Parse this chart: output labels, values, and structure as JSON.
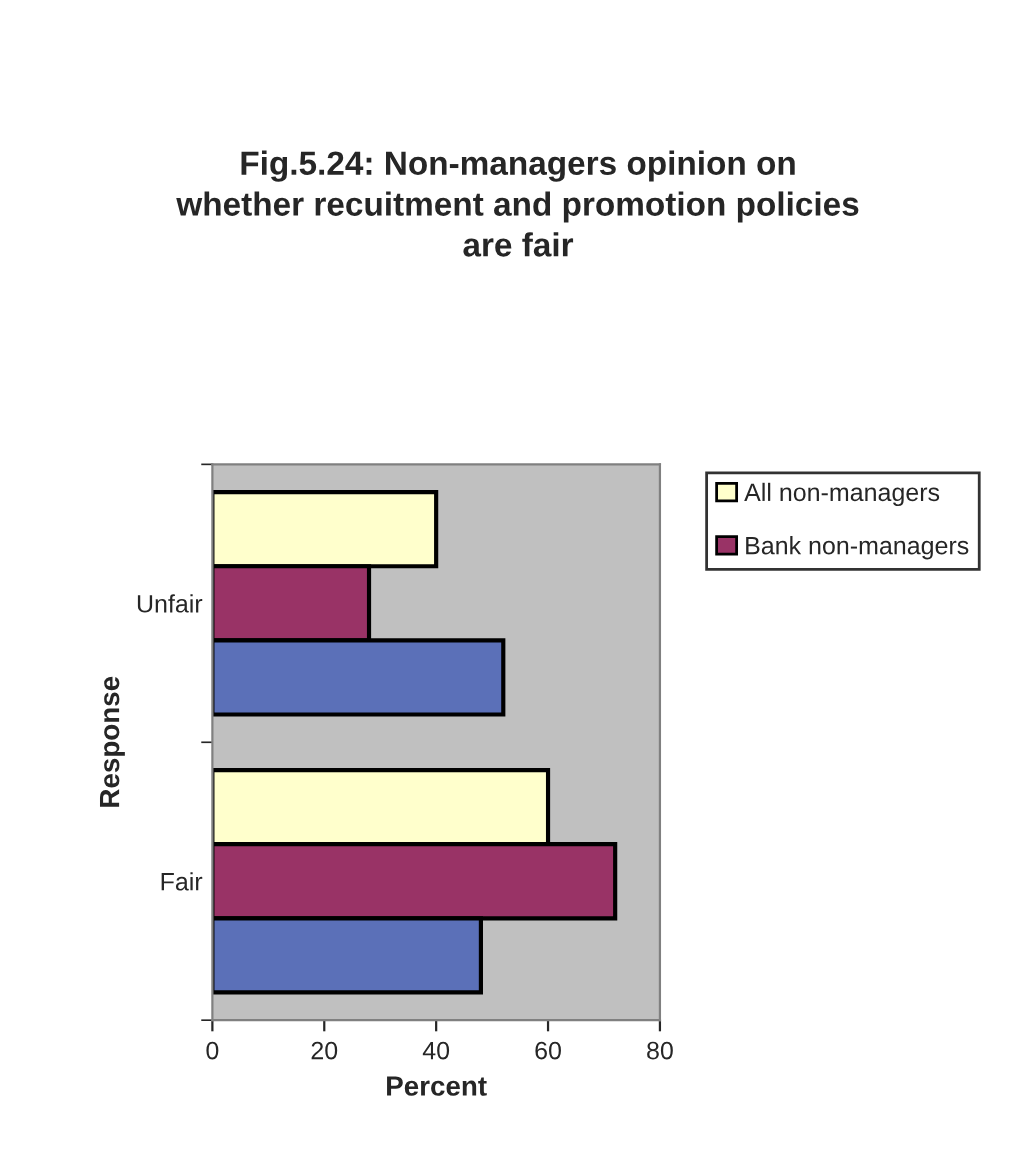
{
  "chart_data": {
    "type": "bar",
    "orientation": "horizontal",
    "title": "Fig.5.24: Non-managers opinion on\nwhether recuitment and promotion policies\nare fair",
    "xlabel": "Percent",
    "ylabel": "Response",
    "categories": [
      "Unfair",
      "Fair"
    ],
    "series": [
      {
        "name": "All non-managers",
        "color": "#ffffcc",
        "values": [
          40,
          60
        ]
      },
      {
        "name": "Bank non-managers",
        "color": "#993366",
        "values": [
          28,
          72
        ]
      },
      {
        "color": "#5b70b8",
        "values": [
          52,
          48
        ]
      }
    ],
    "xlim": [
      0,
      80
    ],
    "xticks": [
      0,
      20,
      40,
      60,
      80
    ],
    "grid": false,
    "legend": "right"
  }
}
